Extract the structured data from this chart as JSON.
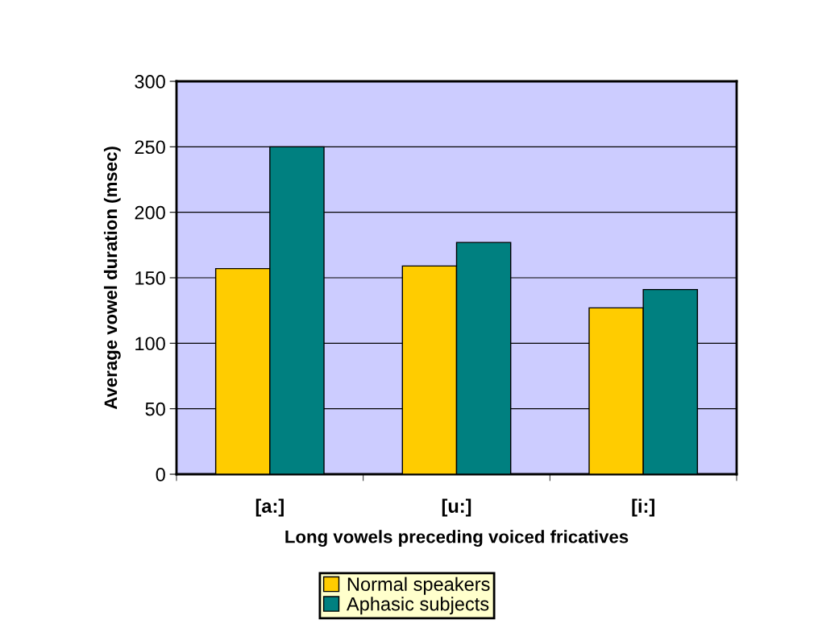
{
  "chart_data": {
    "type": "bar",
    "xlabel": "Long vowels preceding voiced fricatives",
    "ylabel": "Average vowel duration (msec)",
    "categories": [
      "[a:]",
      "[u:]",
      "[i:]"
    ],
    "series": [
      {
        "name": "Normal speakers",
        "color": "#ffcc00",
        "values": [
          157,
          159,
          127
        ]
      },
      {
        "name": "Aphasic subjects",
        "color": "#008080",
        "values": [
          250,
          177,
          141
        ]
      }
    ],
    "ylim": [
      0,
      300
    ],
    "yticks": [
      0,
      50,
      100,
      150,
      200,
      250,
      300
    ],
    "grid": "y",
    "legend": "bottom"
  }
}
